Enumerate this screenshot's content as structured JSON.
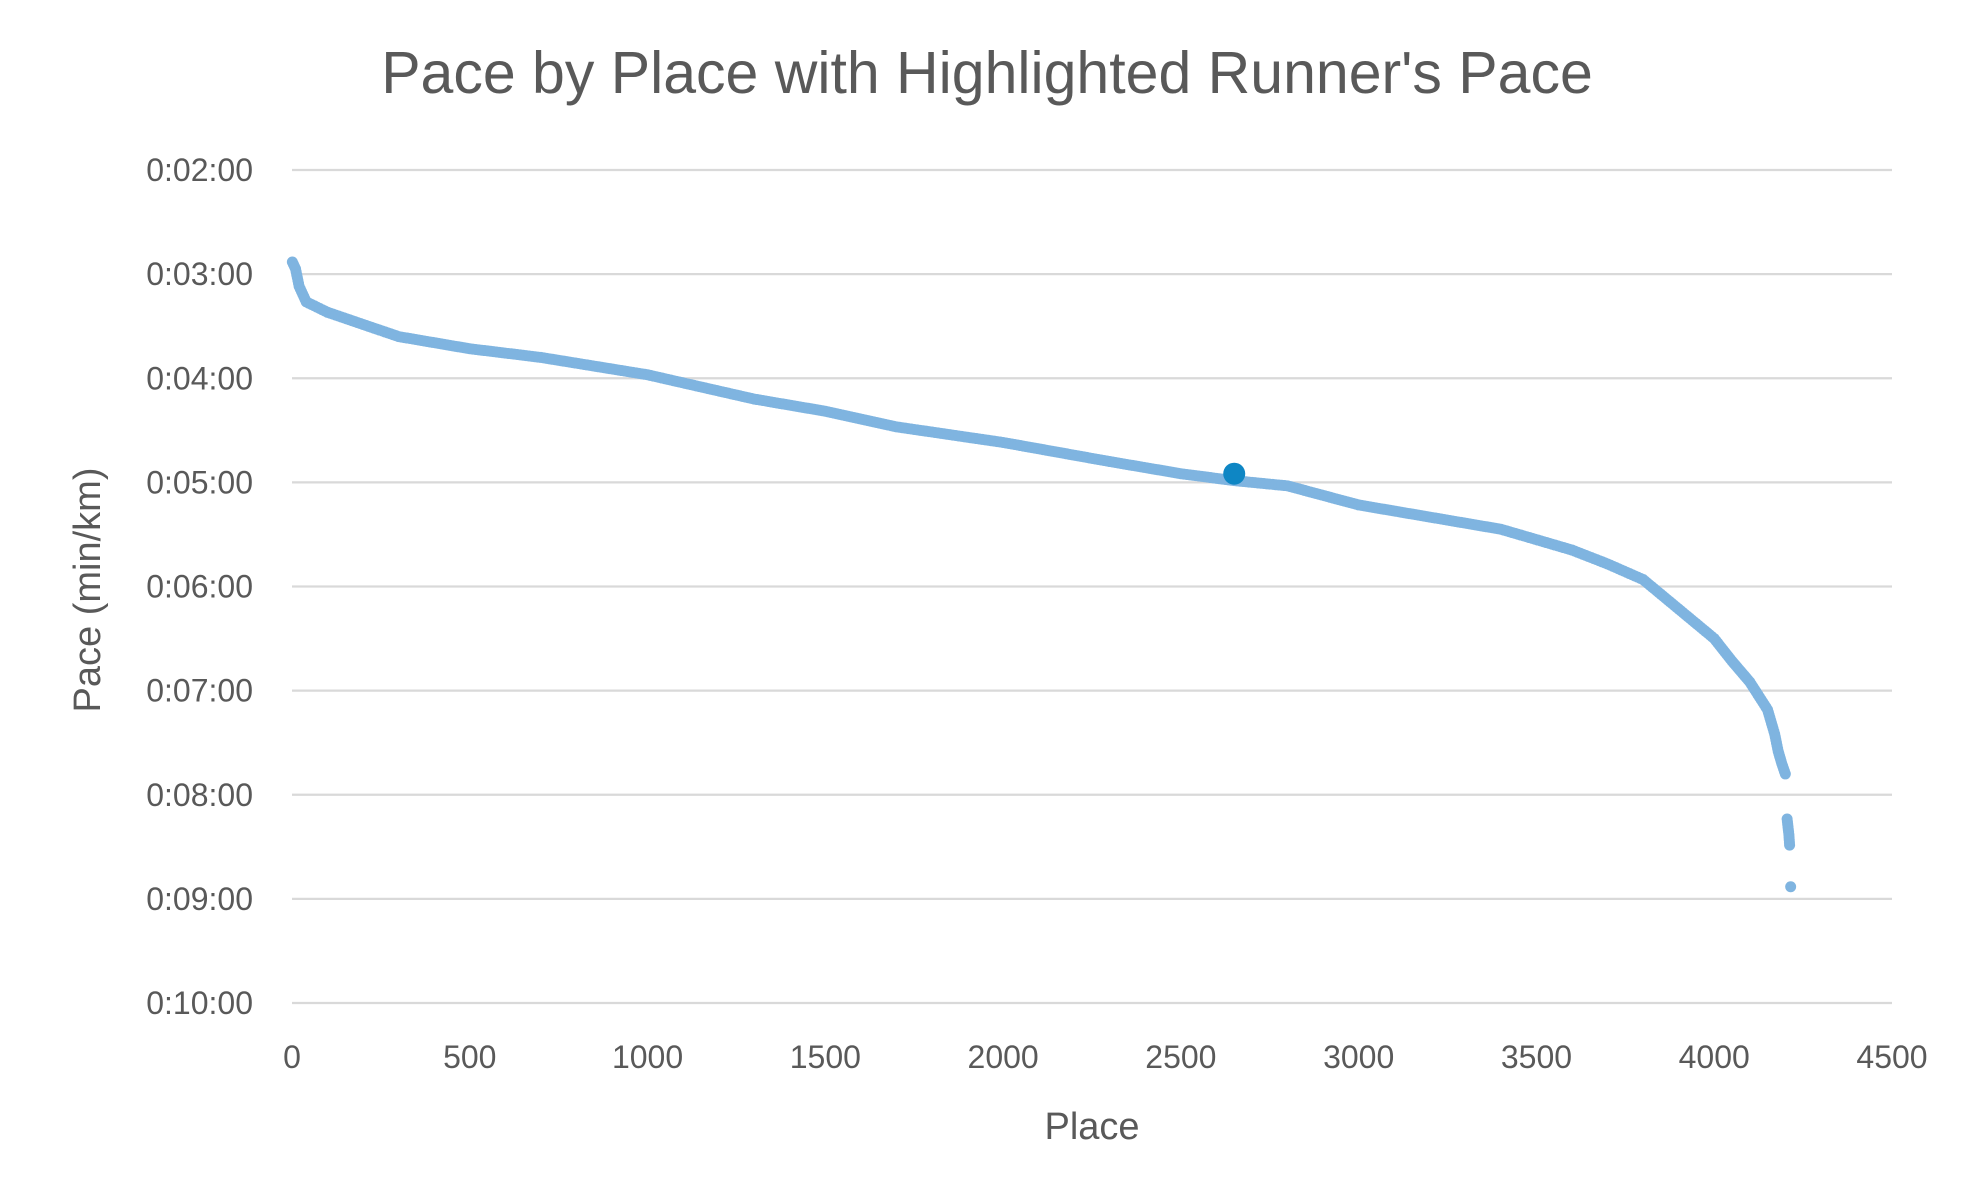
{
  "chart_data": {
    "type": "scatter",
    "title": "Pace by Place with Highlighted Runner's Pace",
    "xlabel": "Place",
    "ylabel": "Pace (min/km)",
    "xlim": [
      0,
      4500
    ],
    "ylim_minutes": [
      2,
      10
    ],
    "y_inverted": true,
    "grid": "horizontal",
    "x_ticks": [
      "0",
      "500",
      "1000",
      "1500",
      "2000",
      "2500",
      "3000",
      "3500",
      "4000",
      "4500"
    ],
    "y_ticks": [
      "0:02:00",
      "0:03:00",
      "0:04:00",
      "0:05:00",
      "0:06:00",
      "0:07:00",
      "0:08:00",
      "0:09:00",
      "0:10:00"
    ],
    "series": [
      {
        "color": "#7fb4e0",
        "x": [
          1,
          10,
          20,
          40,
          70,
          100,
          200,
          300,
          500,
          700,
          1000,
          1300,
          1500,
          1700,
          2000,
          2300,
          2500,
          2650,
          2800,
          3000,
          3200,
          3400,
          3600,
          3700,
          3800,
          3900,
          4000,
          4050,
          4100,
          4150,
          4170,
          4180,
          4190,
          4200,
          4205,
          4210,
          4212,
          4215
        ],
        "y": [
          "2:53",
          "2:57",
          "3:07",
          "3:16",
          "3:19",
          "3:22",
          "3:29",
          "3:36",
          "3:43",
          "3:48",
          "3:58",
          "4:12",
          "4:19",
          "4:28",
          "4:37",
          "4:48",
          "4:55",
          "4:59",
          "5:02",
          "5:13",
          "5:20",
          "5:27",
          "5:39",
          "5:47",
          "5:56",
          "6:13",
          "6:30",
          "6:43",
          "6:55",
          "7:11",
          "7:25",
          "7:35",
          "7:42",
          "7:48",
          "8:14",
          "8:23",
          "8:29",
          "8:53"
        ]
      },
      {
        "color": "#0e86c4",
        "highlight": true,
        "x": [
          2650
        ],
        "y": [
          "4:55"
        ]
      }
    ]
  }
}
